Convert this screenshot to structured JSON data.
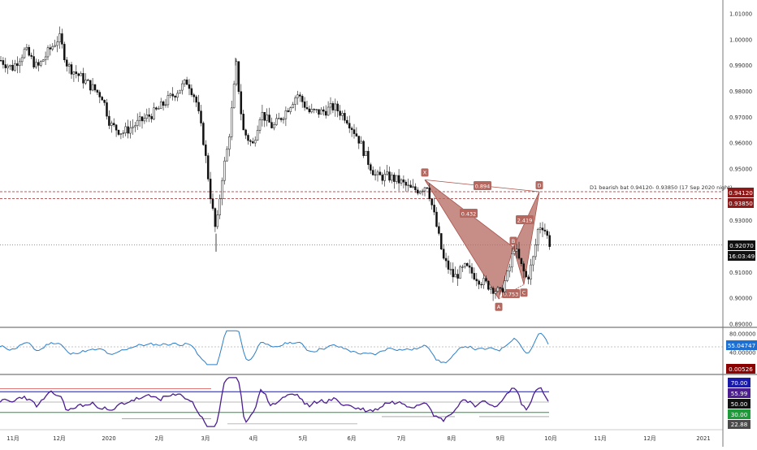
{
  "colors": {
    "background": "#ffffff",
    "candle": "#111111",
    "pattern_fill": "#b4685f",
    "pattern_stroke": "#a8524a",
    "level_line": "#9e2a2a",
    "rsi_line": "#2c7ec7",
    "stoch_line": "#4b1d8f",
    "current_price_bg": "#111111",
    "rsi_badge_bg": "#1f6fd1",
    "osc_badge_bg": "#8b0000",
    "level70_bg": "#1a1aa8",
    "level30_bg": "#1f9a3a",
    "grey_badge_bg": "#4a4a4a"
  },
  "annotation": "D1 bearish bat 0.94120- 0.93850 (17 Sep 2020 night)",
  "badges": {
    "price_upper": "0.94120",
    "price_lower": "0.93850",
    "price_current": "0.92070",
    "countdown": "16:03:49",
    "rsi_value": "55.04747",
    "osc_value": "0.00526",
    "lvl70": "70.00",
    "lvl56": "55.99",
    "lvl50": "50.00",
    "lvl30": "30.00",
    "lvl22": "22.88"
  },
  "chart_data": {
    "type": "candlestick",
    "price_axis_ticks": [
      "1.01000",
      "1.00000",
      "0.99000",
      "0.98000",
      "0.97000",
      "0.96000",
      "0.95000",
      "0.94000",
      "0.93000",
      "0.92000",
      "0.91000",
      "0.90000",
      "0.89000"
    ],
    "rsi_axis_ticks": [
      "80.00000",
      "40.00000"
    ],
    "x_labels": [
      "11月",
      "12月",
      "2020",
      "2月",
      "3月",
      "4月",
      "5月",
      "6月",
      "7月",
      "8月",
      "9月",
      "10月",
      "11月",
      "12月",
      "2021"
    ],
    "levels": [
      0.9412,
      0.9385,
      0.9207
    ],
    "pattern": {
      "name": "bearish bat",
      "points": [
        {
          "label": "X",
          "price": 0.9458
        },
        {
          "label": "A",
          "price": 0.8998
        },
        {
          "label": "B",
          "price": 0.9197
        },
        {
          "label": "C",
          "price": 0.9053
        },
        {
          "label": "D",
          "price": 0.9412
        }
      ],
      "ratios": [
        {
          "label": "0.432",
          "leg": "XB"
        },
        {
          "label": "0.753",
          "leg": "AC"
        },
        {
          "label": "2.419",
          "leg": "BD"
        },
        {
          "label": "0.894",
          "leg": "XD"
        }
      ]
    },
    "rsi_panel": {
      "current": 55.04747,
      "levels": [
        80,
        40
      ]
    },
    "stoch_panel": {
      "levels": [
        70,
        50,
        30
      ],
      "current": 55.99
    }
  }
}
